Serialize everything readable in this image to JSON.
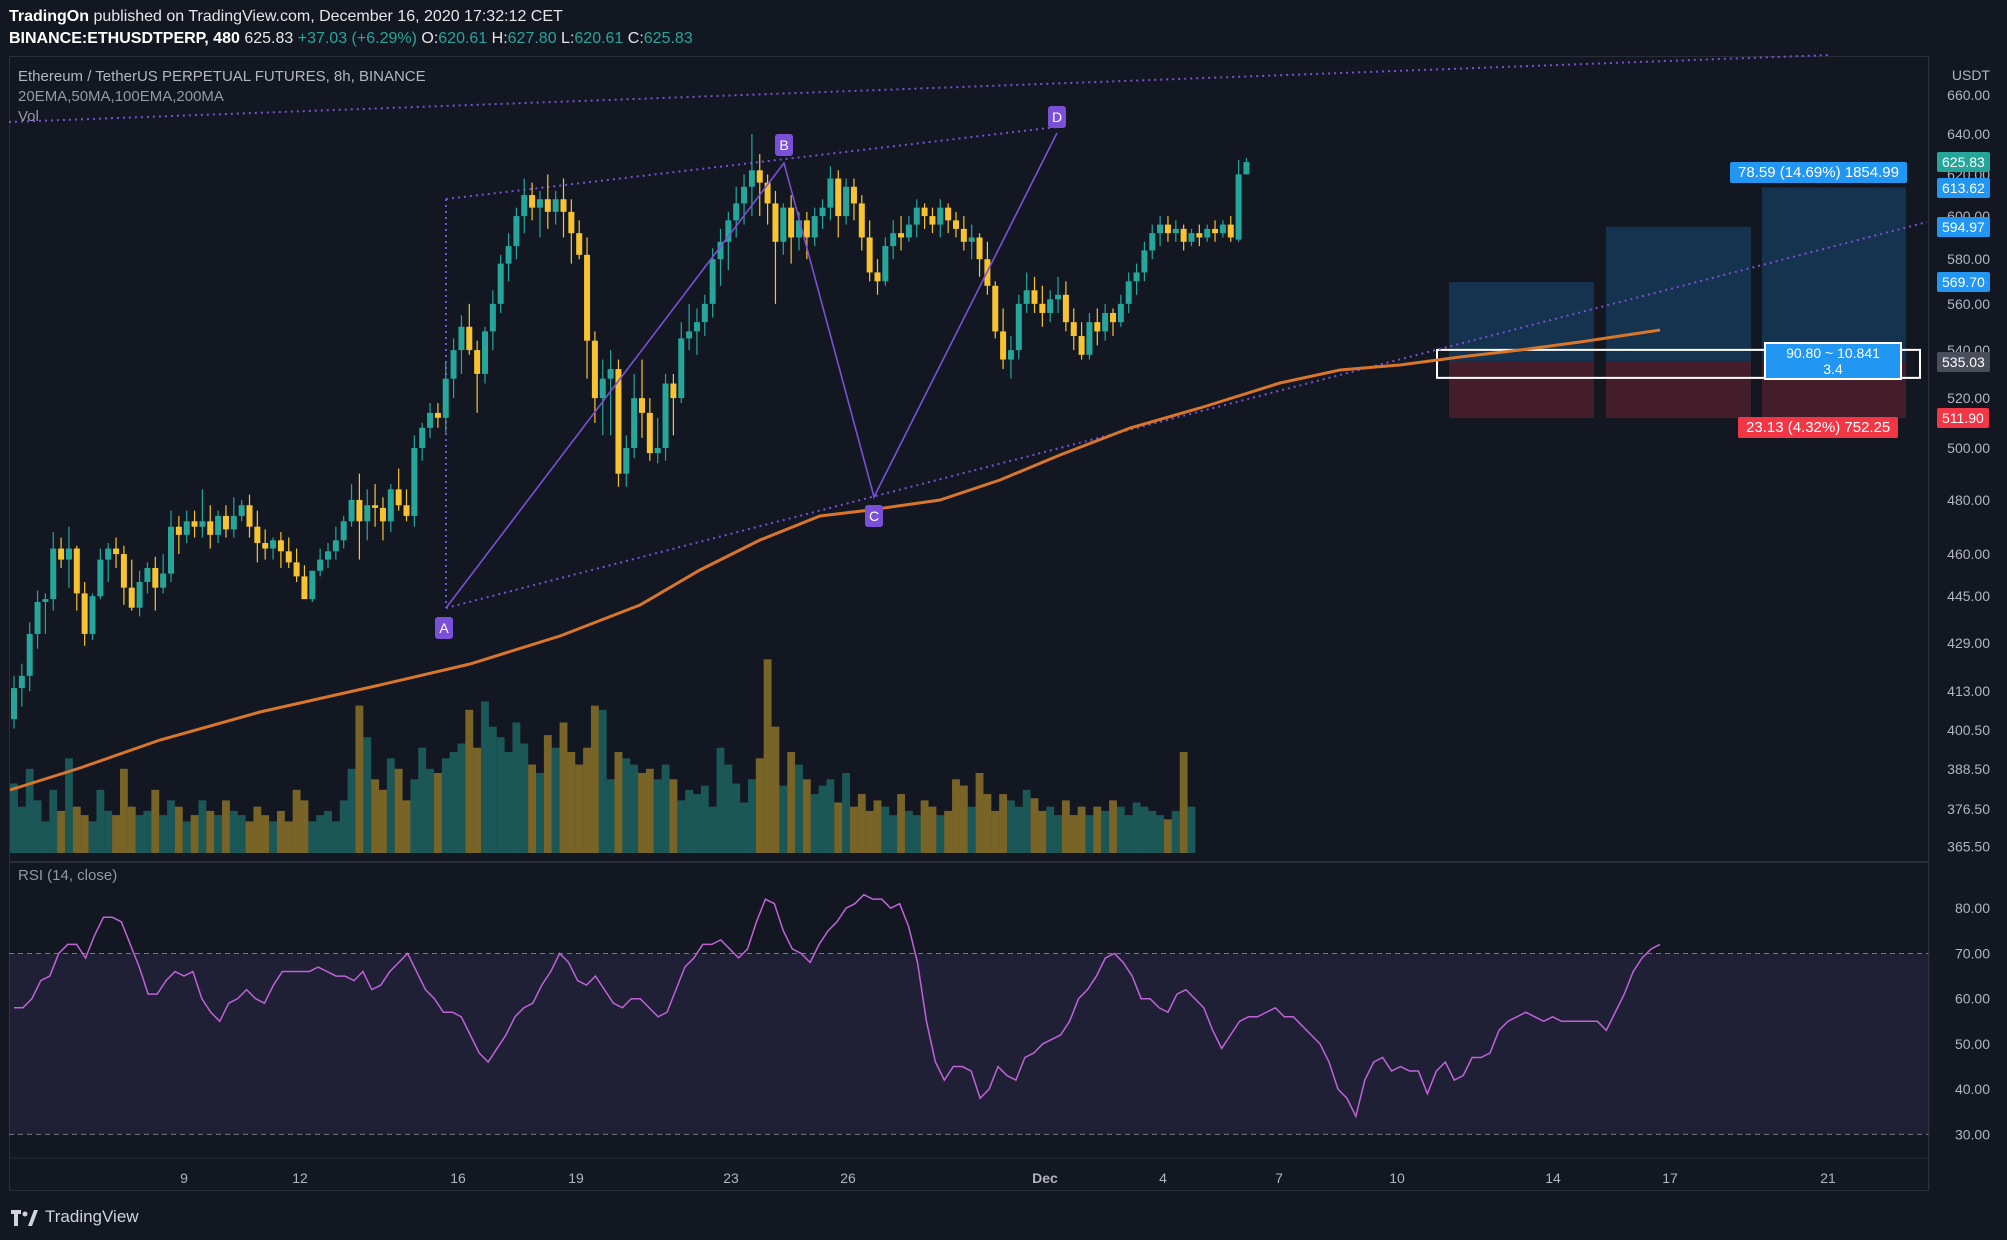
{
  "header": {
    "publisher": "TradingOn",
    "published_text": "published on TradingView.com, December 16, 2020 17:32:12 CET",
    "symbol_line": "BINANCE:ETHUSDTPERP, 480",
    "last": "625.83",
    "change": "+37.03 (+6.29%)",
    "o_label": "O:",
    "o": "620.61",
    "h_label": "H:",
    "h": "627.80",
    "l_label": "L:",
    "l": "620.61",
    "c_label": "C:",
    "c": "625.83"
  },
  "legend": {
    "title": "Ethereum / TetherUS PERPETUAL FUTURES, 8h, BINANCE",
    "indicators": "20EMA,50MA,100EMA,200MA",
    "volume": "Vol",
    "rsi": "RSI (14, close)"
  },
  "footer": {
    "brand": "TradingView"
  },
  "colors": {
    "background": "#131722",
    "up": "#26a69a",
    "down": "#f7c331",
    "ma": "#d9762a",
    "pattern": "#7b50d9",
    "rsi": "#c063d8",
    "target": "#2196f3",
    "stop": "#f23645"
  },
  "chart_data": {
    "type": "candlestick",
    "currency": "USDT",
    "x_tick_labels": [
      "9",
      "12",
      "16",
      "19",
      "23",
      "26",
      "Dec",
      "4",
      "7",
      "10",
      "14",
      "17",
      "21"
    ],
    "y_tick_labels": [
      "660.00",
      "640.00",
      "620.00",
      "600.00",
      "580.00",
      "560.00",
      "540.00",
      "520.00",
      "500.00",
      "480.00",
      "460.00",
      "445.00",
      "429.00",
      "413.00",
      "400.50",
      "388.50",
      "376.50",
      "365.50"
    ],
    "ylim": [
      365.5,
      668
    ],
    "y_scale": "log",
    "ohlc": [
      [
        404,
        418,
        401,
        414
      ],
      [
        414,
        422,
        408,
        418
      ],
      [
        418,
        436,
        413,
        432
      ],
      [
        432,
        447,
        427,
        443
      ],
      [
        443,
        446,
        432,
        444
      ],
      [
        444,
        468,
        440,
        462
      ],
      [
        462,
        466,
        455,
        458
      ],
      [
        458,
        470,
        448,
        462
      ],
      [
        462,
        463,
        440,
        446
      ],
      [
        446,
        450,
        428,
        432
      ],
      [
        432,
        446,
        430,
        445
      ],
      [
        445,
        462,
        444,
        458
      ],
      [
        458,
        464,
        450,
        462
      ],
      [
        462,
        466,
        455,
        460
      ],
      [
        460,
        463,
        442,
        448
      ],
      [
        448,
        458,
        440,
        441
      ],
      [
        441,
        454,
        438,
        450
      ],
      [
        450,
        457,
        446,
        455
      ],
      [
        455,
        459,
        440,
        448
      ],
      [
        448,
        460,
        446,
        453
      ],
      [
        453,
        476,
        450,
        470
      ],
      [
        470,
        474,
        460,
        467
      ],
      [
        467,
        476,
        464,
        472
      ],
      [
        472,
        476,
        466,
        470
      ],
      [
        470,
        484,
        466,
        472
      ],
      [
        472,
        478,
        462,
        467
      ],
      [
        467,
        476,
        464,
        474
      ],
      [
        474,
        478,
        466,
        469
      ],
      [
        469,
        481,
        466,
        474
      ],
      [
        474,
        480,
        472,
        478
      ],
      [
        478,
        482,
        466,
        470
      ],
      [
        470,
        476,
        457,
        464
      ],
      [
        464,
        469,
        458,
        462
      ],
      [
        462,
        466,
        458,
        465
      ],
      [
        465,
        468,
        455,
        461
      ],
      [
        461,
        466,
        455,
        457
      ],
      [
        457,
        462,
        450,
        452
      ],
      [
        452,
        456,
        446,
        444
      ],
      [
        444,
        454,
        443,
        454
      ],
      [
        454,
        462,
        452,
        458
      ],
      [
        458,
        464,
        455,
        461
      ],
      [
        461,
        470,
        458,
        465
      ],
      [
        465,
        474,
        462,
        472
      ],
      [
        472,
        486,
        470,
        480
      ],
      [
        480,
        490,
        458,
        472
      ],
      [
        472,
        484,
        465,
        478
      ],
      [
        478,
        486,
        470,
        477
      ],
      [
        477,
        481,
        465,
        472
      ],
      [
        472,
        486,
        468,
        484
      ],
      [
        484,
        492,
        476,
        478
      ],
      [
        478,
        484,
        472,
        474
      ],
      [
        474,
        505,
        470,
        500
      ],
      [
        500,
        510,
        495,
        508
      ],
      [
        508,
        518,
        504,
        514
      ],
      [
        514,
        518,
        508,
        512
      ],
      [
        512,
        535,
        506,
        528
      ],
      [
        528,
        545,
        520,
        540
      ],
      [
        540,
        555,
        530,
        550
      ],
      [
        550,
        560,
        538,
        540
      ],
      [
        540,
        544,
        514,
        530
      ],
      [
        530,
        550,
        526,
        548
      ],
      [
        548,
        566,
        540,
        560
      ],
      [
        560,
        582,
        556,
        578
      ],
      [
        578,
        592,
        570,
        586
      ],
      [
        586,
        604,
        580,
        600
      ],
      [
        600,
        618,
        592,
        610
      ],
      [
        610,
        616,
        598,
        604
      ],
      [
        604,
        612,
        590,
        608
      ],
      [
        608,
        620,
        594,
        602
      ],
      [
        602,
        612,
        596,
        608
      ],
      [
        608,
        618,
        590,
        602
      ],
      [
        602,
        608,
        578,
        592
      ],
      [
        592,
        598,
        580,
        582
      ],
      [
        582,
        590,
        528,
        544
      ],
      [
        544,
        548,
        510,
        520
      ],
      [
        520,
        536,
        505,
        528
      ],
      [
        528,
        540,
        505,
        532
      ],
      [
        532,
        536,
        485,
        490
      ],
      [
        490,
        505,
        485,
        500
      ],
      [
        500,
        530,
        496,
        520
      ],
      [
        520,
        536,
        504,
        514
      ],
      [
        514,
        520,
        495,
        498
      ],
      [
        498,
        512,
        494,
        500
      ],
      [
        500,
        530,
        495,
        526
      ],
      [
        526,
        530,
        505,
        520
      ],
      [
        520,
        552,
        518,
        545
      ],
      [
        545,
        560,
        540,
        548
      ],
      [
        548,
        558,
        538,
        552
      ],
      [
        552,
        564,
        546,
        560
      ],
      [
        560,
        585,
        554,
        580
      ],
      [
        580,
        594,
        568,
        588
      ],
      [
        588,
        602,
        575,
        598
      ],
      [
        598,
        614,
        590,
        606
      ],
      [
        606,
        620,
        596,
        614
      ],
      [
        614,
        640,
        600,
        622
      ],
      [
        622,
        630,
        600,
        616
      ],
      [
        616,
        620,
        596,
        606
      ],
      [
        606,
        612,
        560,
        588
      ],
      [
        588,
        606,
        582,
        604
      ],
      [
        604,
        610,
        578,
        590
      ],
      [
        590,
        602,
        584,
        598
      ],
      [
        598,
        602,
        580,
        590
      ],
      [
        590,
        604,
        586,
        600
      ],
      [
        600,
        608,
        594,
        604
      ],
      [
        604,
        624,
        598,
        618
      ],
      [
        618,
        622,
        590,
        600
      ],
      [
        600,
        618,
        596,
        614
      ],
      [
        614,
        618,
        598,
        606
      ],
      [
        606,
        610,
        584,
        590
      ],
      [
        590,
        598,
        570,
        574
      ],
      [
        574,
        580,
        564,
        570
      ],
      [
        570,
        590,
        568,
        586
      ],
      [
        586,
        598,
        580,
        592
      ],
      [
        592,
        600,
        584,
        590
      ],
      [
        590,
        600,
        588,
        596
      ],
      [
        596,
        608,
        590,
        604
      ],
      [
        604,
        606,
        594,
        600
      ],
      [
        600,
        604,
        592,
        596
      ],
      [
        596,
        608,
        590,
        604
      ],
      [
        604,
        606,
        592,
        598
      ],
      [
        598,
        602,
        590,
        594
      ],
      [
        594,
        600,
        584,
        588
      ],
      [
        588,
        596,
        580,
        590
      ],
      [
        590,
        592,
        572,
        580
      ],
      [
        580,
        588,
        564,
        568
      ],
      [
        568,
        570,
        545,
        548
      ],
      [
        548,
        558,
        532,
        536
      ],
      [
        536,
        546,
        528,
        540
      ],
      [
        540,
        564,
        536,
        560
      ],
      [
        560,
        574,
        556,
        566
      ],
      [
        566,
        572,
        556,
        560
      ],
      [
        560,
        568,
        550,
        556
      ],
      [
        556,
        566,
        552,
        562
      ],
      [
        562,
        572,
        556,
        564
      ],
      [
        564,
        570,
        548,
        552
      ],
      [
        552,
        558,
        540,
        546
      ],
      [
        546,
        552,
        536,
        538
      ],
      [
        538,
        556,
        536,
        552
      ],
      [
        552,
        558,
        542,
        548
      ],
      [
        548,
        560,
        544,
        556
      ],
      [
        556,
        558,
        546,
        552
      ],
      [
        552,
        564,
        550,
        560
      ],
      [
        560,
        574,
        556,
        570
      ],
      [
        570,
        578,
        564,
        574
      ],
      [
        574,
        588,
        570,
        584
      ],
      [
        584,
        596,
        580,
        592
      ],
      [
        592,
        600,
        586,
        596
      ],
      [
        596,
        600,
        588,
        592
      ],
      [
        592,
        598,
        588,
        594
      ],
      [
        594,
        596,
        584,
        588
      ],
      [
        588,
        594,
        586,
        592
      ],
      [
        592,
        596,
        586,
        590
      ],
      [
        590,
        596,
        588,
        594
      ],
      [
        594,
        598,
        588,
        592
      ],
      [
        592,
        598,
        590,
        596
      ],
      [
        596,
        600,
        588,
        590
      ],
      [
        589,
        627,
        588,
        620
      ],
      [
        620,
        628,
        620,
        626
      ]
    ],
    "volume": [
      33,
      22,
      40,
      25,
      15,
      30,
      20,
      45,
      22,
      18,
      15,
      30,
      20,
      18,
      40,
      22,
      18,
      20,
      30,
      18,
      25,
      22,
      15,
      18,
      25,
      20,
      18,
      25,
      20,
      18,
      15,
      22,
      18,
      15,
      20,
      15,
      30,
      25,
      15,
      18,
      20,
      15,
      25,
      40,
      70,
      55,
      35,
      30,
      45,
      40,
      25,
      35,
      50,
      40,
      38,
      45,
      48,
      52,
      68,
      50,
      72,
      60,
      55,
      48,
      62,
      52,
      42,
      38,
      56,
      50,
      62,
      48,
      42,
      50,
      70,
      68,
      35,
      48,
      45,
      42,
      38,
      40,
      35,
      42,
      35,
      25,
      30,
      28,
      32,
      22,
      50,
      42,
      33,
      24,
      35,
      45,
      92,
      60,
      32,
      48,
      42,
      35,
      28,
      32,
      35,
      24,
      38,
      22,
      28,
      20,
      25,
      22,
      18,
      28,
      20,
      18,
      25,
      22,
      18,
      20,
      35,
      32,
      22,
      38,
      28,
      20,
      28,
      25,
      22,
      30,
      26,
      20,
      22,
      18,
      25,
      18,
      22,
      18,
      22,
      20,
      25,
      22,
      18,
      24,
      22,
      20,
      18,
      16,
      20,
      48,
      22
    ],
    "ma_line": [
      [
        0,
        384
      ],
      [
        12,
        389
      ],
      [
        24,
        395
      ],
      [
        36,
        400
      ],
      [
        48,
        408
      ],
      [
        60,
        415
      ],
      [
        72,
        422
      ],
      [
        84,
        430
      ],
      [
        96,
        440
      ],
      [
        108,
        452
      ],
      [
        120,
        468
      ],
      [
        135,
        483
      ],
      [
        150,
        497
      ],
      [
        165,
        508
      ],
      [
        180,
        518
      ],
      [
        192,
        527
      ],
      [
        204,
        533
      ],
      [
        215,
        537
      ],
      [
        230,
        546
      ],
      [
        245,
        550
      ]
    ],
    "abcd": [
      {
        "label": "A",
        "price": 443
      },
      {
        "label": "B",
        "price": 620
      },
      {
        "label": "C",
        "price": 480
      },
      {
        "label": "D",
        "price": 638
      }
    ],
    "channel": {
      "upper": [
        [
          0,
          622
        ],
        [
          100,
          668
        ]
      ],
      "lower": [
        [
          0,
          443
        ],
        [
          150,
          600
        ]
      ]
    },
    "position": {
      "entry": 535.03,
      "target": 613.62,
      "stop": 511.9,
      "target_label": "78.59 (14.69%) 1854.99",
      "stop_label": "23.13 (4.32%) 752.25",
      "ratio_label_1": "90.80 ~ 10.841",
      "ratio_label_2": "3.4"
    },
    "price_badges": [
      {
        "text": "625.83",
        "value": 625.83,
        "color": "#26a69a"
      },
      {
        "text": "613.62",
        "value": 613.62,
        "color": "#2196f3"
      },
      {
        "text": "594.97",
        "value": 594.97,
        "color": "#2196f3"
      },
      {
        "text": "569.70",
        "value": 569.7,
        "color": "#2196f3"
      },
      {
        "text": "535.03",
        "value": 535.03,
        "color": "#4a4e5a"
      },
      {
        "text": "511.90",
        "value": 511.9,
        "color": "#f23645"
      }
    ],
    "rsi": {
      "ylim": [
        25,
        90
      ],
      "y_tick_labels": [
        "80.00",
        "70.00",
        "60.00",
        "50.00",
        "40.00",
        "30.00"
      ],
      "upper": 70,
      "lower": 30,
      "values": [
        58,
        58,
        60,
        64,
        65,
        70,
        72,
        72,
        69,
        74,
        78,
        78,
        77,
        72,
        67,
        61,
        61,
        64,
        66,
        65,
        66,
        60,
        57,
        55,
        59,
        60,
        62,
        60,
        59,
        63,
        66,
        66,
        66,
        66,
        67,
        66,
        65,
        65,
        64,
        66,
        62,
        63,
        66,
        68,
        70,
        66,
        62,
        60,
        57,
        57,
        56,
        52,
        48,
        46,
        49,
        52,
        56,
        58,
        59,
        63,
        66,
        70,
        68,
        64,
        63,
        65,
        62,
        59,
        58,
        60,
        60,
        58,
        56,
        57,
        62,
        67,
        69,
        72,
        72,
        73,
        71,
        69,
        71,
        77,
        82,
        81,
        75,
        71,
        70,
        68,
        72,
        75,
        77,
        80,
        81,
        83,
        82,
        82,
        80,
        81,
        76,
        68,
        55,
        46,
        42,
        45,
        45,
        44,
        38,
        40,
        45,
        43,
        42,
        47,
        48,
        50,
        51,
        52,
        55,
        60,
        62,
        65,
        69,
        70,
        68,
        65,
        60,
        60,
        58,
        57,
        61,
        62,
        60,
        58,
        53,
        49,
        52,
        55,
        56,
        56,
        57,
        58,
        56,
        56,
        54,
        52,
        50,
        46,
        40,
        38,
        34,
        42,
        46,
        47,
        44,
        45,
        44,
        44,
        39,
        44,
        46,
        42,
        43,
        47,
        47,
        48,
        53,
        55,
        56,
        57,
        56,
        55,
        56,
        55,
        55,
        55,
        55,
        55,
        53,
        57,
        61,
        66,
        69,
        71,
        72
      ]
    }
  }
}
